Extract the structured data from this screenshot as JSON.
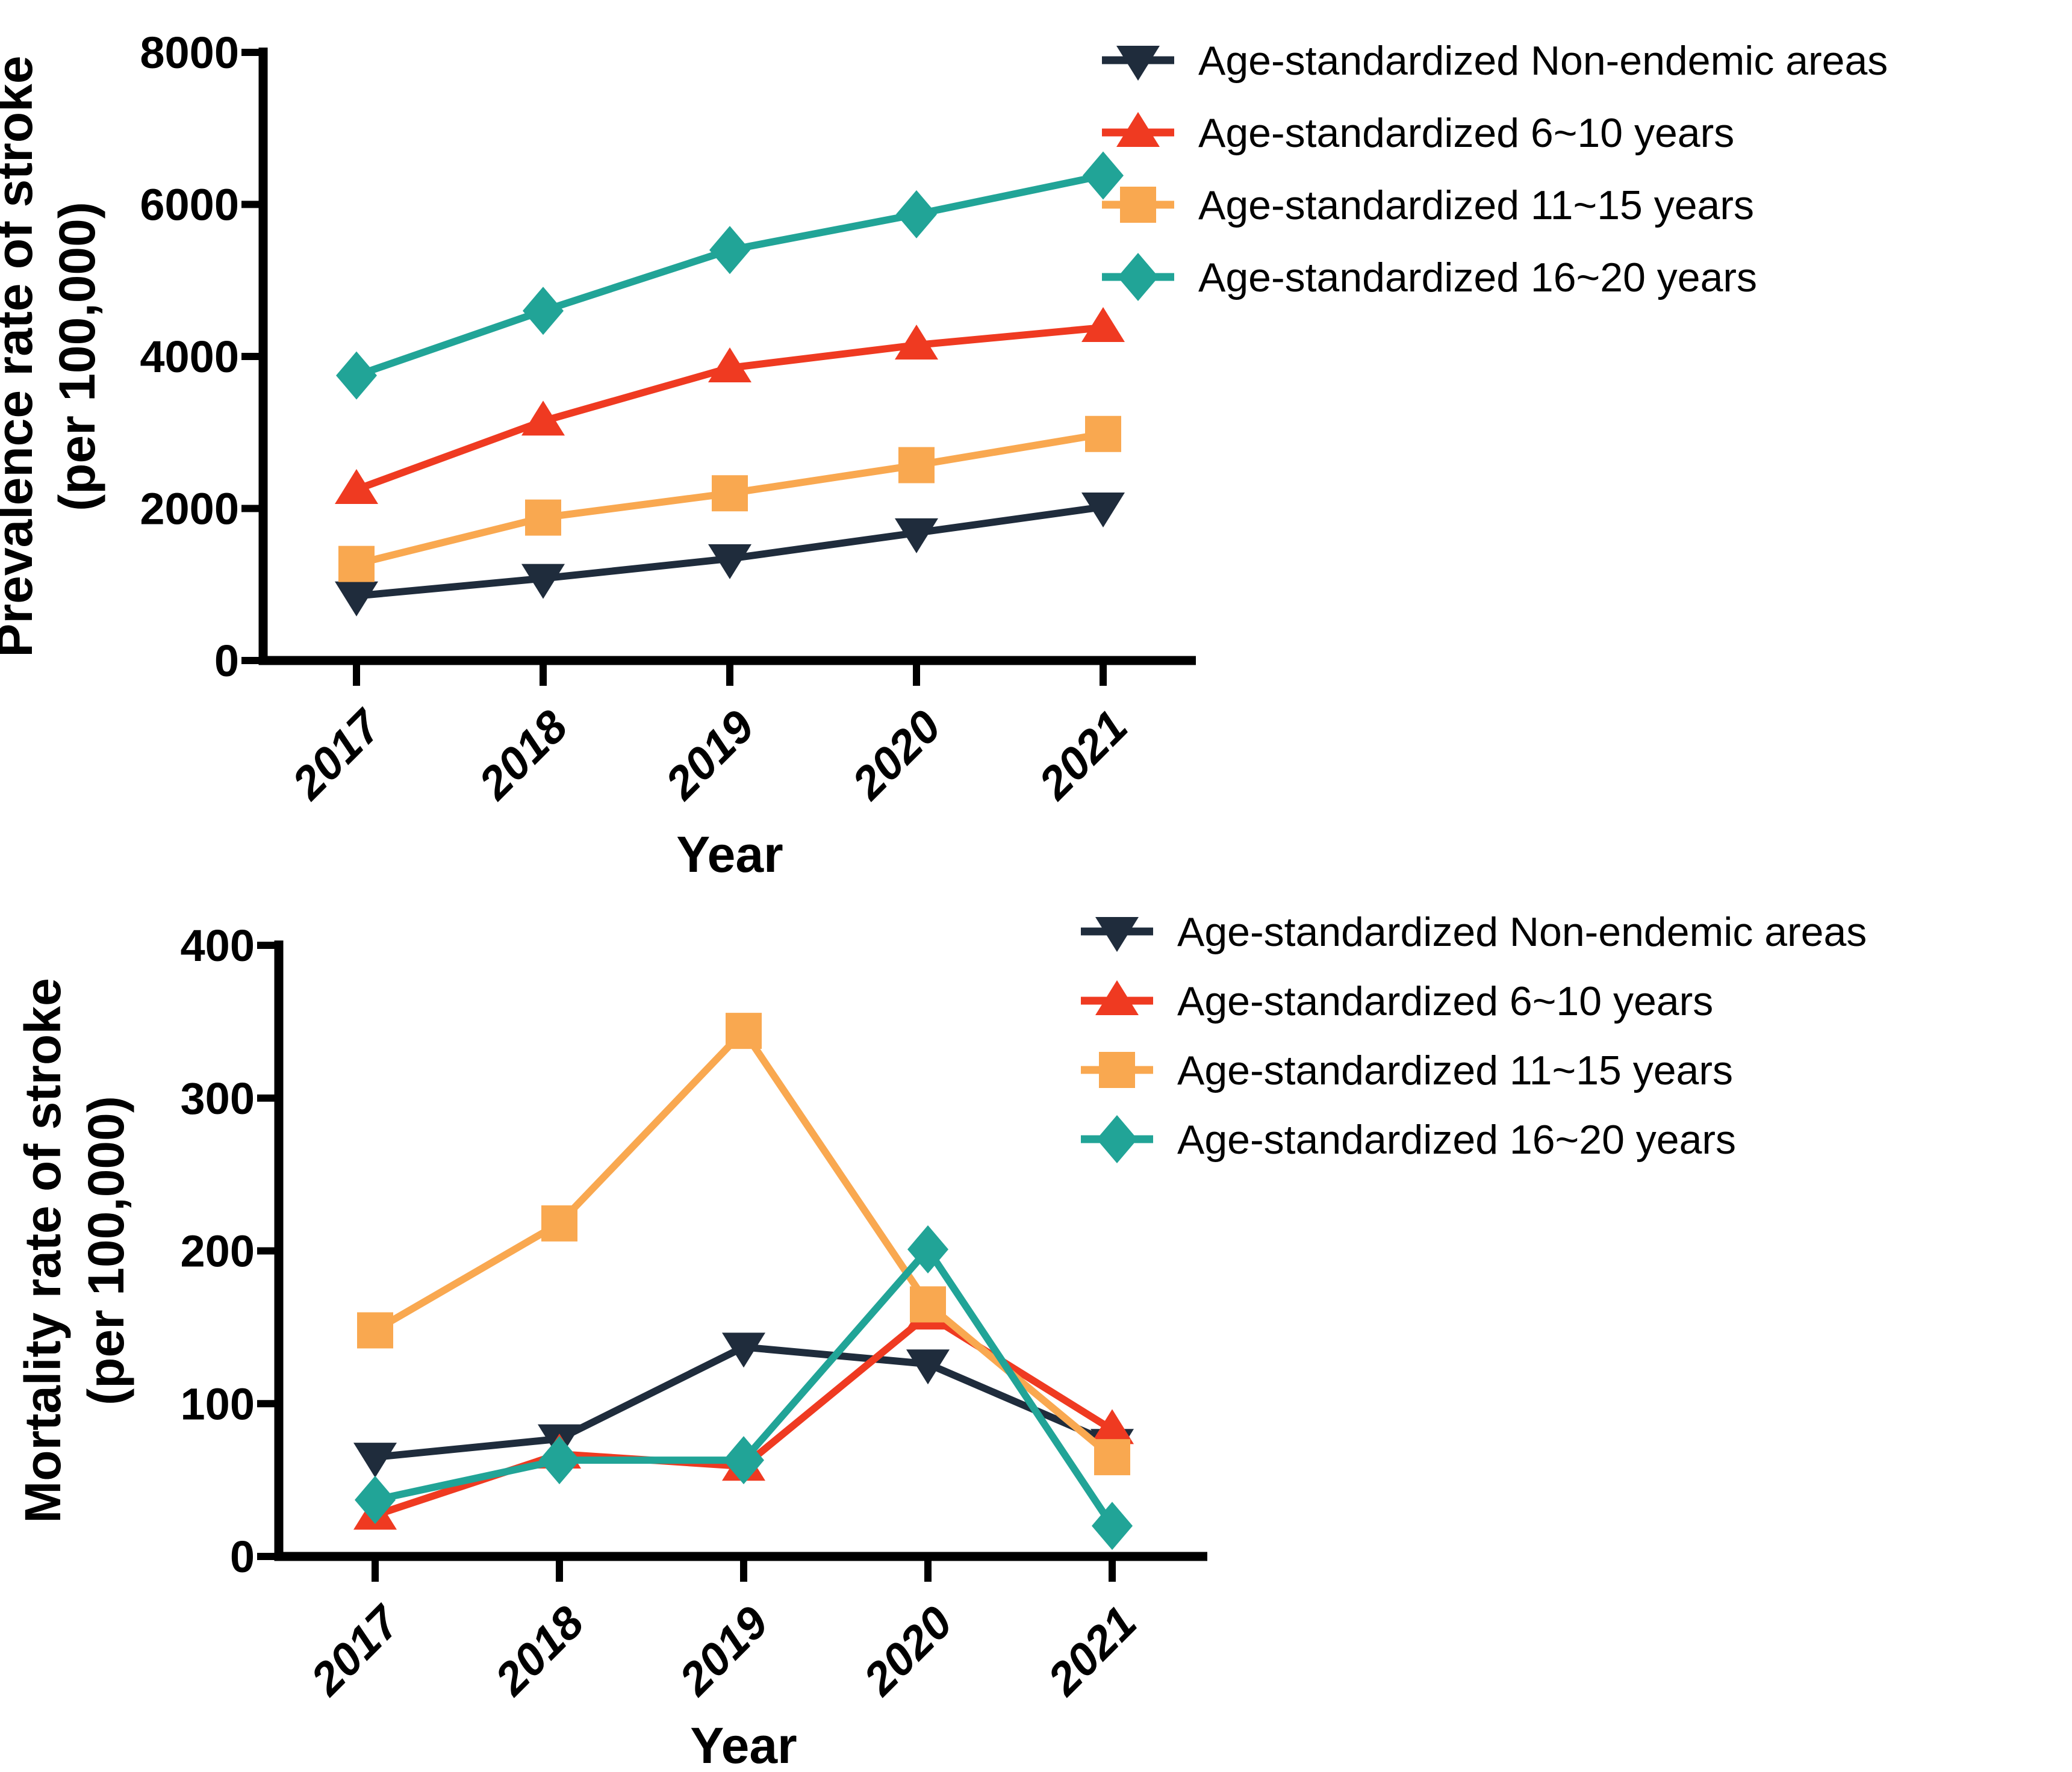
{
  "figure": {
    "background": "#ffffff",
    "description": "Two stacked line charts of stroke rates by year"
  },
  "colors": {
    "non_endemic": "#1F2C3C",
    "age_6_10": "#EF3A21",
    "age_11_15": "#F9A850",
    "age_16_20": "#21A497",
    "axis": "#000000",
    "text": "#000000"
  },
  "chart_data": [
    {
      "type": "line",
      "ylabel_line1": "Prevalence rate of stroke",
      "ylabel_line2": "(per 100,000)",
      "xlabel": "Year",
      "categories": [
        "2017",
        "2018",
        "2019",
        "2020",
        "2021"
      ],
      "ylim": [
        0,
        8000
      ],
      "yticks": [
        0,
        2000,
        4000,
        6000,
        8000
      ],
      "grid": false,
      "legend_position": "top-right",
      "series": [
        {
          "name": "Age-standardized Non-endemic areas",
          "color_key": "non_endemic",
          "marker": "triangle-down",
          "values": [
            850,
            1080,
            1340,
            1680,
            2020
          ]
        },
        {
          "name": "Age-standardized 6~10 years",
          "color_key": "age_6_10",
          "marker": "triangle-up",
          "values": [
            2250,
            3150,
            3850,
            4150,
            4380
          ]
        },
        {
          "name": "Age-standardized 11~15 years",
          "color_key": "age_11_15",
          "marker": "square",
          "values": [
            1270,
            1880,
            2200,
            2570,
            2980
          ]
        },
        {
          "name": "Age-standardized 16~20 years",
          "color_key": "age_16_20",
          "marker": "diamond",
          "values": [
            3750,
            4600,
            5400,
            5870,
            6380
          ]
        }
      ]
    },
    {
      "type": "line",
      "ylabel_line1": "Mortality rate of stroke",
      "ylabel_line2": "(per 100,000)",
      "xlabel": "Year",
      "categories": [
        "2017",
        "2018",
        "2019",
        "2020",
        "2021"
      ],
      "ylim": [
        0,
        400
      ],
      "yticks": [
        0,
        100,
        200,
        300,
        400
      ],
      "grid": false,
      "legend_position": "top-right",
      "series": [
        {
          "name": "Age-standardized Non-endemic areas",
          "color_key": "non_endemic",
          "marker": "triangle-down",
          "values": [
            65,
            77,
            137,
            126,
            74
          ]
        },
        {
          "name": "Age-standardized 6~10 years",
          "color_key": "age_6_10",
          "marker": "triangle-up",
          "values": [
            27,
            67,
            59,
            158,
            83
          ]
        },
        {
          "name": "Age-standardized 11~15 years",
          "color_key": "age_11_15",
          "marker": "square",
          "values": [
            148,
            218,
            344,
            165,
            65
          ]
        },
        {
          "name": "Age-standardized 16~20 years",
          "color_key": "age_16_20",
          "marker": "diamond",
          "values": [
            37,
            63,
            63,
            201,
            20
          ]
        }
      ]
    }
  ]
}
